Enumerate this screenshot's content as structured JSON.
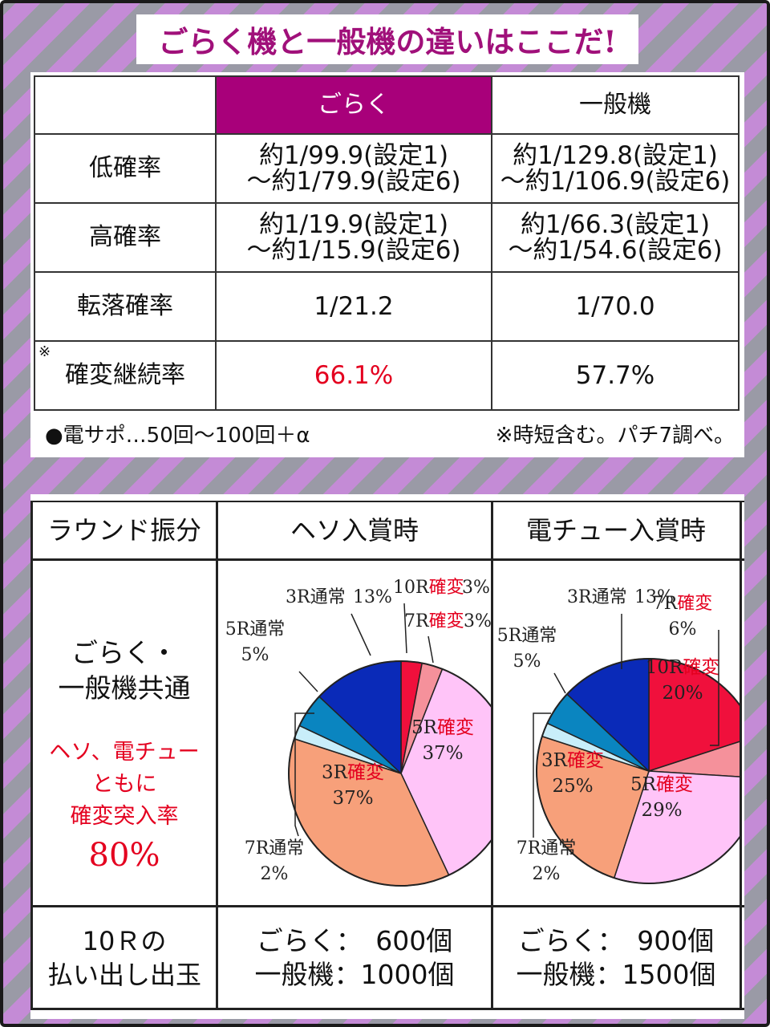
{
  "title": "ごらく機と一般機の違いはここだ!",
  "comparison": {
    "headers": [
      "",
      "ごらく",
      "一般機"
    ],
    "rows": [
      {
        "label": "低確率",
        "goraku": [
          "約1/99.9(設定1)",
          "～約1/79.9(設定6)"
        ],
        "ippan": [
          "約1/129.8(設定1)",
          "～約1/106.9(設定6)"
        ]
      },
      {
        "label": "高確率",
        "goraku": [
          "約1/19.9(設定1)",
          "～約1/15.9(設定6)"
        ],
        "ippan": [
          "約1/66.3(設定1)",
          "～約1/54.6(設定6)"
        ]
      },
      {
        "label": "転落確率",
        "goraku": [
          "1/21.2"
        ],
        "ippan": [
          "1/70.0"
        ]
      },
      {
        "label": "確変継続率",
        "note_mark": "※",
        "goraku": [
          "66.1%"
        ],
        "ippan": [
          "57.7%"
        ]
      }
    ],
    "footnote_left": "●電サポ…50回～100回＋α",
    "footnote_right": "※時短含む。パチ7調べ。"
  },
  "round": {
    "header_label": "ラウンド振分",
    "col_heso": "ヘソ入賞時",
    "col_denchu": "電チュー入賞時",
    "row_label_1": "ごらく・",
    "row_label_2": "一般機共通",
    "note_1": "ヘソ、電チュー",
    "note_2": "ともに",
    "note_3": "確変突入率",
    "note_pct": "80%",
    "payout_label_1": "10Ｒの",
    "payout_label_2": "払い出し出玉",
    "heso_payout_1": "ごらく：　600個",
    "heso_payout_2": "一般機：1000個",
    "denchu_payout_1": "ごらく：　900個",
    "denchu_payout_2": "一般機：1500個"
  },
  "chart_data": [
    {
      "type": "pie",
      "title": "ヘソ入賞時",
      "slices": [
        {
          "name": "10R確変",
          "label_a": "10R",
          "label_b": "確変",
          "pct_text": "3%",
          "value": 3,
          "color": "#f0103c"
        },
        {
          "name": "7R確変",
          "label_a": "7R",
          "label_b": "確変",
          "pct_text": "3%",
          "value": 3,
          "color": "#f5919b"
        },
        {
          "name": "5R確変",
          "label_a": "5R",
          "label_b": "確変",
          "pct_text": "37%",
          "value": 37,
          "color": "#ffc4f8"
        },
        {
          "name": "3R確変",
          "label_a": "3R",
          "label_b": "確変",
          "pct_text": "37%",
          "value": 37,
          "color": "#f7a07a"
        },
        {
          "name": "7R通常",
          "label_a": "7R",
          "label_b": "通常",
          "pct_text": "2%",
          "value": 2,
          "color": "#c8eefa"
        },
        {
          "name": "5R通常",
          "label_a": "5R",
          "label_b": "通常",
          "pct_text": "5%",
          "value": 5,
          "color": "#0a85c0"
        },
        {
          "name": "3R通常",
          "label_a": "3R",
          "label_b": "通常",
          "pct_text": "13%",
          "value": 13,
          "color": "#0a2ab8"
        }
      ]
    },
    {
      "type": "pie",
      "title": "電チュー入賞時",
      "slices": [
        {
          "name": "10R確変",
          "label_a": "10R",
          "label_b": "確変",
          "pct_text": "20%",
          "value": 20,
          "color": "#f0103c"
        },
        {
          "name": "7R確変",
          "label_a": "7R",
          "label_b": "確変",
          "pct_text": "6%",
          "value": 6,
          "color": "#f5919b"
        },
        {
          "name": "5R確変",
          "label_a": "5R",
          "label_b": "確変",
          "pct_text": "29%",
          "value": 29,
          "color": "#ffc4f8"
        },
        {
          "name": "3R確変",
          "label_a": "3R",
          "label_b": "確変",
          "pct_text": "25%",
          "value": 25,
          "color": "#f7a07a"
        },
        {
          "name": "7R通常",
          "label_a": "7R",
          "label_b": "通常",
          "pct_text": "2%",
          "value": 2,
          "color": "#c8eefa"
        },
        {
          "name": "5R通常",
          "label_a": "5R",
          "label_b": "通常",
          "pct_text": "5%",
          "value": 5,
          "color": "#0a85c0"
        },
        {
          "name": "3R通常",
          "label_a": "3R",
          "label_b": "通常",
          "pct_text": "13%",
          "value": 13,
          "color": "#0a2ab8"
        }
      ]
    }
  ]
}
